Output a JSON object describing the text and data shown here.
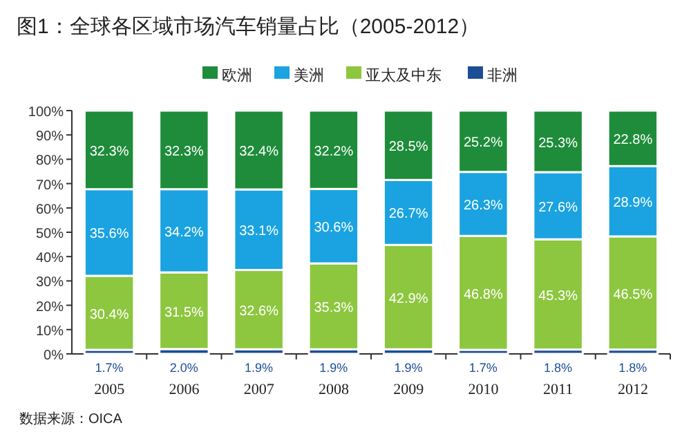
{
  "chart_data": {
    "type": "bar",
    "title": "图1：全球各区域市场汽车销量占比（2005-2012）",
    "categories": [
      "2005",
      "2006",
      "2007",
      "2008",
      "2009",
      "2010",
      "2011",
      "2012"
    ],
    "stacked": true,
    "legend": "top",
    "grid": false,
    "ylim": [
      0,
      100
    ],
    "yticks": [
      {
        "value": 0,
        "label": "0%"
      },
      {
        "value": 10,
        "label": "10%"
      },
      {
        "value": 20,
        "label": "20%"
      },
      {
        "value": 30,
        "label": "30%"
      },
      {
        "value": 40,
        "label": "40%"
      },
      {
        "value": 50,
        "label": "50%"
      },
      {
        "value": 60,
        "label": "60%"
      },
      {
        "value": 70,
        "label": "70%"
      },
      {
        "value": 80,
        "label": "80%"
      },
      {
        "value": 90,
        "label": "90%"
      },
      {
        "value": 100,
        "label": "100%"
      }
    ],
    "series": [
      {
        "name": "非洲",
        "color": "#1c4e96",
        "values": [
          1.7,
          2.0,
          1.9,
          1.9,
          1.9,
          1.7,
          1.8,
          1.8
        ],
        "value_labels": [
          "1.7%",
          "2.0%",
          "1.9%",
          "1.9%",
          "1.9%",
          "1.7%",
          "1.8%",
          "1.8%"
        ]
      },
      {
        "name": "亚太及中东",
        "color": "#8dc63f",
        "values": [
          30.4,
          31.5,
          32.6,
          35.3,
          42.9,
          46.8,
          45.3,
          46.5
        ],
        "value_labels": [
          "30.4%",
          "31.5%",
          "32.6%",
          "35.3%",
          "42.9%",
          "46.8%",
          "45.3%",
          "46.5%"
        ]
      },
      {
        "name": "美洲",
        "color": "#1aa3e0",
        "values": [
          35.6,
          34.2,
          33.1,
          30.6,
          26.7,
          26.3,
          27.6,
          28.9
        ],
        "value_labels": [
          "35.6%",
          "34.2%",
          "33.1%",
          "30.6%",
          "26.7%",
          "26.3%",
          "27.6%",
          "28.9%"
        ]
      },
      {
        "name": "欧洲",
        "color": "#1e8c3a",
        "values": [
          32.3,
          32.3,
          32.4,
          32.2,
          28.5,
          25.2,
          25.3,
          22.8
        ],
        "value_labels": [
          "32.3%",
          "32.3%",
          "32.4%",
          "32.2%",
          "28.5%",
          "25.2%",
          "25.3%",
          "22.8%"
        ]
      }
    ],
    "annotations": [
      "数据来源：OICA"
    ]
  }
}
